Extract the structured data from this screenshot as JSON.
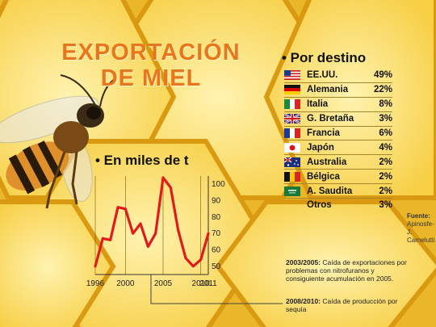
{
  "title": {
    "line1": "EXPORTACIÓN",
    "line2": "DE MIEL"
  },
  "by_destination": {
    "heading": "• Por destino",
    "rows": [
      {
        "name": "EE.UU.",
        "value": "49%",
        "flag": "usa-flag"
      },
      {
        "name": "Alemania",
        "value": "22%",
        "flag": "germany-flag"
      },
      {
        "name": "Italia",
        "value": "8%",
        "flag": "italy-flag"
      },
      {
        "name": "G. Bretaña",
        "value": "3%",
        "flag": "uk-flag"
      },
      {
        "name": "Francia",
        "value": "6%",
        "flag": "france-flag"
      },
      {
        "name": "Japón",
        "value": "4%",
        "flag": "japan-flag"
      },
      {
        "name": "Australia",
        "value": "2%",
        "flag": "australia-flag"
      },
      {
        "name": "Bélgica",
        "value": "2%",
        "flag": "belgium-flag"
      },
      {
        "name": "A. Saudita",
        "value": "2%",
        "flag": "saudi-arabia-flag"
      },
      {
        "name": "Otros",
        "value": "3%",
        "flag": ""
      }
    ]
  },
  "source": {
    "label": "Fuente:",
    "text1": "Apinosfe-",
    "text2": "J. Carnelutti"
  },
  "notes": [
    {
      "period": "2003/2005:",
      "text": "Caída de exportaciones por problemas con nitrofuranos y consiguiente acumulación en 2005."
    },
    {
      "period": "2008/2010:",
      "text": "Caída de producción por sequía"
    }
  ],
  "colors": {
    "line": "#e01b1b",
    "title": "#e8761a",
    "honey": "#f4c431"
  },
  "chart_data": {
    "type": "line",
    "title": "• En miles de t",
    "x": [
      1996,
      1997,
      1998,
      1999,
      2000,
      2001,
      2002,
      2003,
      2004,
      2005,
      2006,
      2007,
      2008,
      2009,
      2010,
      2011
    ],
    "series": [
      {
        "values": [
          50,
          67,
          66,
          86,
          85,
          70,
          76,
          62,
          70,
          104,
          98,
          72,
          55,
          50,
          54,
          70
        ]
      }
    ],
    "x_ticks": [
      "1996",
      "2000",
      "2005",
      "2010",
      "2011"
    ],
    "x_tick_values": [
      1996,
      2000,
      2005,
      2010,
      2011
    ],
    "y_ticks": [
      "50",
      "60",
      "70",
      "80",
      "90",
      "100"
    ],
    "y_tick_values": [
      50,
      60,
      70,
      80,
      90,
      100
    ],
    "xlim": [
      1996,
      2011
    ],
    "ylim": [
      45,
      105
    ]
  }
}
